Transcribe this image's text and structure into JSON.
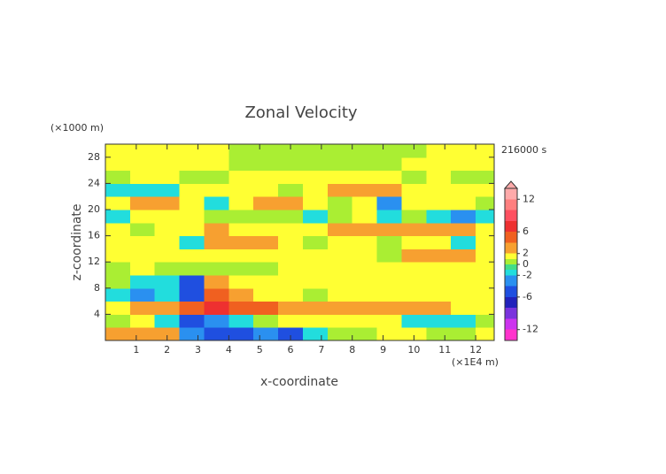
{
  "chart_data": {
    "type": "contour",
    "title": "Zonal Velocity",
    "x_label": "x-coordinate",
    "y_label": "z-coordinate",
    "x_unit": "(×1E4 m)",
    "y_unit": "(×1000 m)",
    "time_label": "216000 s",
    "xlim": [
      0,
      12.6
    ],
    "ylim": [
      0,
      30
    ],
    "xticks": [
      1,
      2,
      3,
      4,
      5,
      6,
      7,
      8,
      9,
      10,
      11,
      12
    ],
    "yticks": [
      4,
      8,
      12,
      16,
      20,
      24,
      28
    ],
    "x": [
      0.4,
      1.2,
      2.0,
      2.8,
      3.6,
      4.4,
      5.2,
      6.0,
      6.8,
      7.6,
      8.4,
      9.2,
      10.0,
      10.8,
      11.6,
      12.4
    ],
    "z": [
      1,
      3,
      5,
      7,
      9,
      11,
      13,
      15,
      17,
      19,
      21,
      23,
      25,
      27,
      29
    ],
    "values": [
      [
        3,
        3,
        2.5,
        -3,
        -5,
        -5,
        -4,
        -5,
        -1.5,
        0.5,
        0.5,
        1.5,
        1.5,
        0.5,
        0.5,
        1.5
      ],
      [
        0.5,
        1.5,
        -1.5,
        -5,
        -3,
        -2,
        0.5,
        1.5,
        1.5,
        1.5,
        1.5,
        1.5,
        -1.5,
        -1.5,
        -1.5,
        0.5
      ],
      [
        1.5,
        3,
        3,
        5,
        7,
        5,
        5,
        3,
        3,
        3,
        3,
        3,
        3,
        3,
        1.5,
        1.5
      ],
      [
        -1.5,
        -3,
        -1.5,
        -5,
        5,
        3,
        1.5,
        1.5,
        0.5,
        1.5,
        1.5,
        1.5,
        1.5,
        1.5,
        1.5,
        1.5
      ],
      [
        0.5,
        -1.5,
        -1.5,
        -5,
        3,
        1.5,
        1.5,
        1.5,
        1.5,
        1.5,
        1.5,
        1.5,
        1.5,
        1.5,
        1.5,
        1.5
      ],
      [
        0.5,
        1.5,
        0.5,
        0.5,
        0.5,
        0.5,
        0.5,
        1.5,
        1.5,
        1.5,
        1.5,
        1.5,
        1.5,
        1.5,
        1.5,
        1.5
      ],
      [
        1.5,
        1.5,
        1.5,
        1.5,
        1.5,
        1.5,
        1.5,
        1.5,
        1.5,
        1.5,
        1.5,
        0.5,
        3,
        3,
        3,
        1.5
      ],
      [
        1.5,
        1.5,
        1.5,
        -1.5,
        3,
        3,
        3,
        1.5,
        0.5,
        1.5,
        1.5,
        0.5,
        1.5,
        1.5,
        -1.5,
        1.5
      ],
      [
        1.5,
        0.5,
        1.5,
        1.5,
        3,
        1.5,
        1.5,
        1.5,
        1.5,
        3,
        3,
        3,
        3,
        3,
        3,
        1.5
      ],
      [
        -1.5,
        1.5,
        1.5,
        1.5,
        0.5,
        0.5,
        0.5,
        0.5,
        -1.5,
        0.5,
        1.5,
        -1.5,
        0.5,
        -1.5,
        -3,
        -1.5
      ],
      [
        1.5,
        3,
        3,
        1.5,
        -1.5,
        1.5,
        3,
        3,
        1.5,
        0.5,
        1.5,
        -3,
        1.5,
        1.5,
        1.5,
        0.5
      ],
      [
        -1.5,
        -1.5,
        -1.5,
        1.5,
        1.5,
        1.5,
        1.5,
        0.5,
        1.5,
        3,
        3,
        3,
        1.5,
        1.5,
        1.5,
        1.5
      ],
      [
        0.5,
        1.5,
        1.5,
        0.5,
        0.5,
        1.5,
        1.5,
        1.5,
        1.5,
        1.5,
        1.5,
        1.5,
        0.5,
        1.5,
        0.5,
        0.5
      ],
      [
        1.5,
        1.5,
        1.5,
        1.5,
        1.5,
        0.5,
        0.5,
        0.5,
        0.5,
        0.5,
        0.5,
        0.5,
        1.5,
        1.5,
        1.5,
        1.5
      ],
      [
        1.5,
        1.5,
        1.5,
        1.5,
        1.5,
        0.5,
        0.5,
        0.5,
        0.5,
        0.5,
        0.5,
        0.5,
        0.5,
        1.5,
        1.5,
        1.5
      ]
    ],
    "levels": [
      -14,
      -12,
      -10,
      -8,
      -6,
      -4,
      -2,
      -1,
      0,
      1,
      2,
      4,
      6,
      8,
      10,
      12,
      14
    ],
    "colors": [
      "#ff33cc",
      "#cc33ee",
      "#7a33dd",
      "#2222bb",
      "#1f4fe0",
      "#2a90f0",
      "#22dddd",
      "#44dd88",
      "#aaee33",
      "#ffff33",
      "#f7a030",
      "#f06020",
      "#ee3030",
      "#ff5060",
      "#ff7f7f",
      "#ffaaaa"
    ],
    "colorbar_ticks": [
      -12,
      -6,
      -2,
      0,
      2,
      6,
      12
    ]
  }
}
